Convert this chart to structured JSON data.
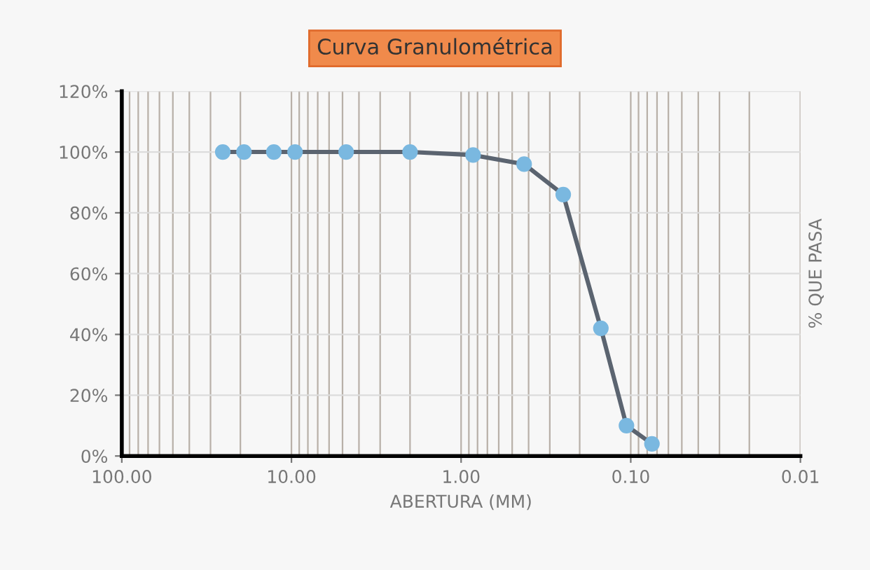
{
  "chart_data": {
    "type": "line",
    "title": "Curva Granulométrica",
    "xlabel": "ABERTURA (MM)",
    "ylabel": "% QUE PASA",
    "x": [
      25.4,
      19.05,
      12.7,
      9.525,
      4.76,
      2.0,
      0.85,
      0.425,
      0.25,
      0.15,
      0.106,
      0.075
    ],
    "series": [
      {
        "color": "#7ab8e0",
        "values": [
          100,
          100,
          100,
          100,
          100,
          100,
          99,
          96,
          86,
          42,
          10,
          4
        ]
      }
    ],
    "log": "x",
    "xlim": [
      100,
      0.01
    ],
    "xticks": [
      {
        "value": 100,
        "label": "100.00"
      },
      {
        "value": 10,
        "label": "10.00"
      },
      {
        "value": 1,
        "label": "1.00"
      },
      {
        "value": 0.1,
        "label": "0.10"
      },
      {
        "value": 0.01,
        "label": "0.01"
      }
    ],
    "ylim": [
      0,
      120
    ],
    "yticks": [
      {
        "value": 0,
        "label": "0%"
      },
      {
        "value": 20,
        "label": "20%"
      },
      {
        "value": 40,
        "label": "40%"
      },
      {
        "value": 60,
        "label": "60%"
      },
      {
        "value": 80,
        "label": "80%"
      },
      {
        "value": 100,
        "label": "100%"
      },
      {
        "value": 120,
        "label": "120%"
      }
    ],
    "grid": true,
    "marker": "circle",
    "line_style": "solid"
  }
}
